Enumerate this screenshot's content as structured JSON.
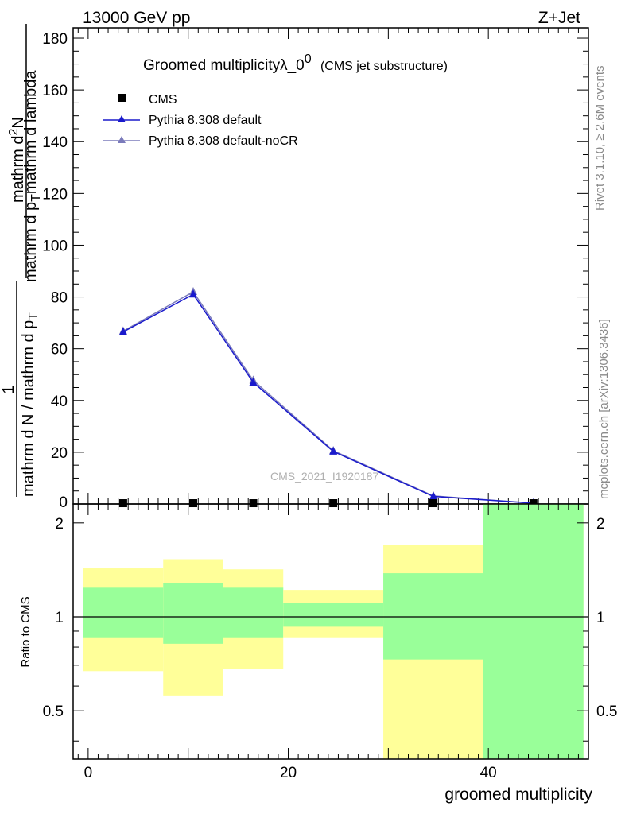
{
  "header": {
    "left": "13000 GeV pp",
    "right": "Z+Jet"
  },
  "side_labels": {
    "top": "Rivet 3.1.10, ≥ 2.6M events",
    "bottom": "mcplots.cern.ch [arXiv:1306.3436]"
  },
  "analysis_label": "CMS_2021_I1920187",
  "chart_data": [
    {
      "type": "line",
      "panel": "main",
      "title": "Groomed multiplicityλ_0",
      "title_sup": "0",
      "subtitle": "(CMS jet substructure)",
      "ylabel_num_top": "1",
      "ylabel_den_top": "mathrm d N / mathrm d p",
      "ylabel_den_sub": "T",
      "ylabel_num_rest": "mathrm d",
      "ylabel_num_sup": "2",
      "ylabel_num_n": "N",
      "ylabel_den_rest1": "mathrm d p",
      "ylabel_den_sub2": "T",
      "ylabel_den_rest2": "mathrm d lambda",
      "xlim": [
        -1.5,
        50
      ],
      "ylim": [
        0,
        184
      ],
      "yticks": [
        20,
        40,
        60,
        80,
        100,
        120,
        140,
        160,
        180
      ],
      "ytick_labels": [
        "20",
        "40",
        "60",
        "80",
        "100",
        "120",
        "140",
        "160",
        "180"
      ],
      "ytick_zero_label": "0",
      "legend_position": "top-left",
      "series": [
        {
          "name": "CMS",
          "color": "#000000",
          "marker": "square",
          "x": [
            3.5,
            10.5,
            16.5,
            24.5,
            34.5,
            44.5
          ],
          "y": [
            0.3,
            0.3,
            0.3,
            0.3,
            0.3,
            0.3
          ]
        },
        {
          "name": "Pythia 8.308 default",
          "color": "#1a1acc",
          "marker": "triangle",
          "x": [
            3.5,
            10.5,
            16.5,
            24.5,
            34.5,
            44.5
          ],
          "y": [
            66.5,
            81.0,
            47.0,
            20.3,
            2.9,
            0.3
          ]
        },
        {
          "name": "Pythia 8.308 default-noCR",
          "color": "#7b7bbb",
          "marker": "triangle",
          "x": [
            3.5,
            10.5,
            16.5,
            24.5,
            34.5,
            44.5
          ],
          "y": [
            66.8,
            82.0,
            47.8,
            20.6,
            3.1,
            0.3
          ]
        }
      ]
    },
    {
      "type": "area",
      "panel": "ratio",
      "ylabel": "Ratio to CMS",
      "xlabel": "groomed multiplicity",
      "xlim": [
        -1.5,
        50
      ],
      "ylim": [
        0.35,
        2.3
      ],
      "yticks": [
        0.5,
        1,
        2
      ],
      "ytick_labels": [
        "0.5",
        "1",
        "2"
      ],
      "xticks": [
        0,
        20,
        40
      ],
      "xtick_labels": [
        "0",
        "20",
        "40"
      ],
      "reference_line": 1,
      "bins": [
        {
          "x0": -0.5,
          "x1": 7.5,
          "stat_lo": 0.86,
          "stat_hi": 1.24,
          "tot_lo": 0.67,
          "tot_hi": 1.43
        },
        {
          "x0": 7.5,
          "x1": 13.5,
          "stat_lo": 0.82,
          "stat_hi": 1.28,
          "tot_lo": 0.56,
          "tot_hi": 1.53
        },
        {
          "x0": 13.5,
          "x1": 19.5,
          "stat_lo": 0.86,
          "stat_hi": 1.24,
          "tot_lo": 0.68,
          "tot_hi": 1.42
        },
        {
          "x0": 19.5,
          "x1": 29.5,
          "stat_lo": 0.93,
          "stat_hi": 1.11,
          "tot_lo": 0.86,
          "tot_hi": 1.22
        },
        {
          "x0": 29.5,
          "x1": 39.5,
          "stat_lo": 0.73,
          "stat_hi": 1.38,
          "tot_lo": 0.35,
          "tot_hi": 1.7
        },
        {
          "x0": 39.5,
          "x1": 49.5,
          "stat_lo": 0.35,
          "stat_hi": 2.3,
          "tot_lo": 0.35,
          "tot_hi": 2.3
        }
      ],
      "colors": {
        "stat": "#99ff99",
        "total": "#ffff99"
      }
    }
  ]
}
